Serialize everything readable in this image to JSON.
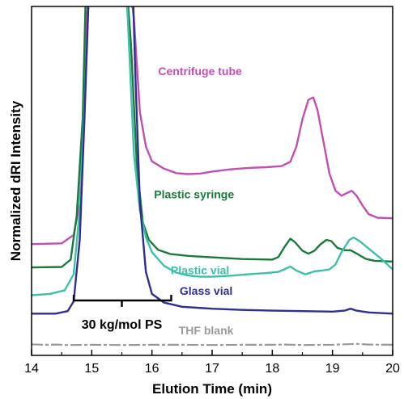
{
  "chart_data": {
    "type": "line",
    "xlabel": "Elution Time (min)",
    "ylabel": "Normalized dRI Intensity",
    "xlim": [
      14,
      20
    ],
    "xticks": [
      "14",
      "15",
      "16",
      "17",
      "18",
      "19",
      "20"
    ],
    "y_tick_labels": false,
    "grid": false,
    "series": [
      {
        "name": "Centrifuge tube",
        "color": "#c04fb3",
        "points": [
          [
            14.0,
            0.283
          ],
          [
            14.5,
            0.286
          ],
          [
            14.7,
            0.32
          ],
          [
            14.8,
            0.45
          ],
          [
            14.85,
            0.7
          ],
          [
            14.9,
            1.1
          ],
          [
            15.0,
            1.6
          ],
          [
            15.5,
            1.6
          ],
          [
            15.7,
            1.2
          ],
          [
            15.8,
            0.82
          ],
          [
            15.9,
            0.68
          ],
          [
            16.0,
            0.62
          ],
          [
            16.2,
            0.59
          ],
          [
            16.4,
            0.572
          ],
          [
            16.6,
            0.568
          ],
          [
            16.8,
            0.57
          ],
          [
            17.0,
            0.578
          ],
          [
            17.3,
            0.587
          ],
          [
            17.6,
            0.593
          ],
          [
            17.9,
            0.596
          ],
          [
            18.15,
            0.6
          ],
          [
            18.3,
            0.618
          ],
          [
            18.4,
            0.68
          ],
          [
            18.5,
            0.79
          ],
          [
            18.6,
            0.87
          ],
          [
            18.68,
            0.88
          ],
          [
            18.75,
            0.83
          ],
          [
            18.85,
            0.7
          ],
          [
            18.95,
            0.57
          ],
          [
            19.05,
            0.5
          ],
          [
            19.15,
            0.48
          ],
          [
            19.25,
            0.492
          ],
          [
            19.32,
            0.5
          ],
          [
            19.4,
            0.48
          ],
          [
            19.5,
            0.44
          ],
          [
            19.6,
            0.405
          ],
          [
            19.75,
            0.39
          ],
          [
            20.0,
            0.388
          ]
        ]
      },
      {
        "name": "Plastic syringe",
        "color": "#1b7a3a",
        "points": [
          [
            14.0,
            0.188
          ],
          [
            14.5,
            0.19
          ],
          [
            14.65,
            0.22
          ],
          [
            14.75,
            0.4
          ],
          [
            14.85,
            0.8
          ],
          [
            14.9,
            1.3
          ],
          [
            15.0,
            1.6
          ],
          [
            15.5,
            1.6
          ],
          [
            15.65,
            1.1
          ],
          [
            15.75,
            0.6
          ],
          [
            15.85,
            0.37
          ],
          [
            15.95,
            0.3
          ],
          [
            16.1,
            0.26
          ],
          [
            16.3,
            0.243
          ],
          [
            16.6,
            0.235
          ],
          [
            17.0,
            0.229
          ],
          [
            17.5,
            0.222
          ],
          [
            18.0,
            0.22
          ],
          [
            18.1,
            0.23
          ],
          [
            18.2,
            0.27
          ],
          [
            18.3,
            0.305
          ],
          [
            18.38,
            0.29
          ],
          [
            18.5,
            0.256
          ],
          [
            18.6,
            0.244
          ],
          [
            18.7,
            0.256
          ],
          [
            18.8,
            0.282
          ],
          [
            18.9,
            0.3
          ],
          [
            18.98,
            0.295
          ],
          [
            19.08,
            0.268
          ],
          [
            19.2,
            0.258
          ],
          [
            19.3,
            0.258
          ],
          [
            19.42,
            0.242
          ],
          [
            19.55,
            0.223
          ],
          [
            19.7,
            0.215
          ],
          [
            20.0,
            0.212
          ]
        ]
      },
      {
        "name": "Plastic vial",
        "color": "#3dbfa8",
        "points": [
          [
            14.0,
            0.075
          ],
          [
            14.3,
            0.08
          ],
          [
            14.55,
            0.095
          ],
          [
            14.7,
            0.16
          ],
          [
            14.8,
            0.42
          ],
          [
            14.88,
            0.85
          ],
          [
            15.0,
            1.6
          ],
          [
            15.5,
            1.6
          ],
          [
            15.6,
            1.2
          ],
          [
            15.7,
            0.65
          ],
          [
            15.8,
            0.42
          ],
          [
            15.9,
            0.31
          ],
          [
            16.0,
            0.25
          ],
          [
            16.2,
            0.195
          ],
          [
            16.4,
            0.167
          ],
          [
            16.6,
            0.155
          ],
          [
            16.8,
            0.15
          ],
          [
            17.0,
            0.15
          ],
          [
            17.3,
            0.154
          ],
          [
            17.6,
            0.16
          ],
          [
            17.9,
            0.165
          ],
          [
            18.1,
            0.17
          ],
          [
            18.2,
            0.18
          ],
          [
            18.3,
            0.192
          ],
          [
            18.4,
            0.175
          ],
          [
            18.55,
            0.16
          ],
          [
            18.7,
            0.172
          ],
          [
            18.85,
            0.176
          ],
          [
            18.95,
            0.18
          ],
          [
            19.05,
            0.2
          ],
          [
            19.15,
            0.25
          ],
          [
            19.28,
            0.3
          ],
          [
            19.35,
            0.31
          ],
          [
            19.45,
            0.295
          ],
          [
            19.6,
            0.265
          ],
          [
            19.8,
            0.225
          ],
          [
            20.0,
            0.18
          ]
        ]
      },
      {
        "name": "Glass vial",
        "color": "#2e2f8f",
        "points": [
          [
            14.0,
            0.0
          ],
          [
            14.4,
            0.0
          ],
          [
            14.6,
            0.01
          ],
          [
            14.7,
            0.05
          ],
          [
            14.8,
            0.3
          ],
          [
            14.88,
            0.8
          ],
          [
            14.95,
            1.3
          ],
          [
            15.0,
            1.6
          ],
          [
            15.65,
            1.6
          ],
          [
            15.72,
            1.0
          ],
          [
            15.8,
            0.45
          ],
          [
            15.9,
            0.17
          ],
          [
            16.0,
            0.08
          ],
          [
            16.2,
            0.045
          ],
          [
            16.5,
            0.028
          ],
          [
            17.0,
            0.02
          ],
          [
            17.5,
            0.015
          ],
          [
            18.0,
            0.012
          ],
          [
            18.5,
            0.01
          ],
          [
            19.0,
            0.008
          ],
          [
            19.2,
            0.012
          ],
          [
            19.3,
            0.02
          ],
          [
            19.4,
            0.012
          ],
          [
            19.6,
            0.005
          ],
          [
            20.0,
            0.0
          ]
        ]
      },
      {
        "name": "THF blank",
        "color": "#9a9a9a",
        "points": [
          [
            14.0,
            -0.125
          ],
          [
            14.2,
            -0.127
          ],
          [
            14.4,
            -0.126
          ],
          [
            14.6,
            -0.128
          ],
          [
            15.0,
            -0.127
          ],
          [
            15.5,
            -0.128
          ],
          [
            16.0,
            -0.127
          ],
          [
            16.5,
            -0.127
          ],
          [
            17.0,
            -0.128
          ],
          [
            17.5,
            -0.127
          ],
          [
            18.0,
            -0.127
          ],
          [
            18.2,
            -0.126
          ],
          [
            18.5,
            -0.128
          ],
          [
            19.0,
            -0.127
          ],
          [
            19.2,
            -0.125
          ],
          [
            19.4,
            -0.123
          ],
          [
            19.6,
            -0.126
          ],
          [
            20.0,
            -0.127
          ]
        ]
      }
    ],
    "annotation": {
      "text": "30 kg/mol PS",
      "bracket_x": [
        14.7,
        16.32
      ],
      "center_x": 15.5
    }
  }
}
